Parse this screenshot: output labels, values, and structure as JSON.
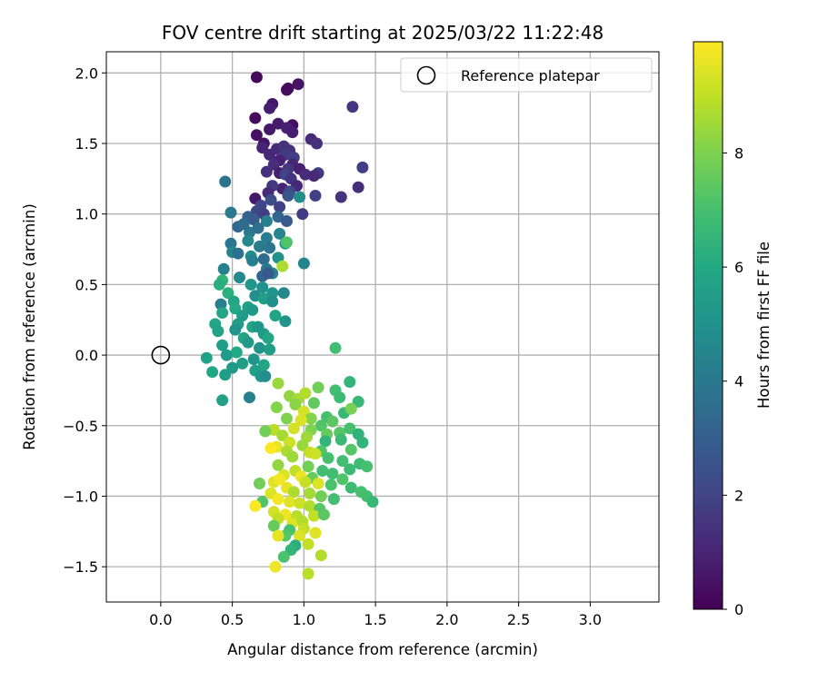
{
  "chart_data": {
    "type": "scatter",
    "title": "FOV centre drift starting at 2025/03/22 11:22:48",
    "xlabel": "Angular distance from reference (arcmin)",
    "ylabel": "Rotation from reference (arcmin)",
    "xlim": [
      -0.38,
      3.48
    ],
    "ylim": [
      -1.75,
      2.15
    ],
    "xticks": [
      "0.0",
      "0.5",
      "1.0",
      "1.5",
      "2.0",
      "2.5",
      "3.0"
    ],
    "xtick_values": [
      0,
      0.5,
      1.0,
      1.5,
      2.0,
      2.5,
      3.0
    ],
    "yticks": [
      "−1.5",
      "−1.0",
      "−0.5",
      "0.0",
      "0.5",
      "1.0",
      "1.5",
      "2.0"
    ],
    "ytick_values": [
      -1.5,
      -1.0,
      -0.5,
      0,
      0.5,
      1.0,
      1.5,
      2.0
    ],
    "grid": true,
    "legend_position": "top-right",
    "legend": [
      {
        "label": "Reference platepar",
        "marker": "open-circle"
      }
    ],
    "reference_point": {
      "x": 0.0,
      "y": 0.0
    },
    "colorbar": {
      "label": "Hours from first FF file",
      "range": [
        0,
        9.95
      ],
      "ticks": [
        "0",
        "2",
        "4",
        "6",
        "8"
      ],
      "tick_values": [
        0,
        2,
        4,
        6,
        8
      ],
      "colormap": "viridis"
    },
    "series": [
      {
        "points": [
          [
            0.67,
            1.97,
            0.2
          ],
          [
            0.96,
            1.92,
            0.5
          ],
          [
            0.88,
            1.88,
            0.4
          ],
          [
            0.89,
            1.89,
            0.3
          ],
          [
            0.78,
            1.78,
            0.6
          ],
          [
            0.76,
            1.75,
            0.8
          ],
          [
            0.66,
            1.68,
            0.3
          ],
          [
            0.82,
            1.64,
            0.7
          ],
          [
            0.92,
            1.63,
            0.4
          ],
          [
            0.88,
            1.61,
            0.9
          ],
          [
            0.76,
            1.6,
            0.6
          ],
          [
            0.92,
            1.58,
            0.8
          ],
          [
            0.67,
            1.56,
            0.4
          ],
          [
            1.34,
            1.76,
            1.6
          ],
          [
            1.05,
            1.53,
            1.2
          ],
          [
            1.09,
            1.5,
            1.4
          ],
          [
            0.72,
            1.5,
            0.5
          ],
          [
            0.71,
            1.47,
            1.0
          ],
          [
            0.81,
            1.46,
            1.2
          ],
          [
            0.86,
            1.48,
            1.5
          ],
          [
            0.9,
            1.45,
            1.4
          ],
          [
            0.87,
            1.42,
            1.7
          ],
          [
            0.93,
            1.4,
            1.8
          ],
          [
            0.76,
            1.42,
            1.1
          ],
          [
            0.83,
            1.38,
            0.9
          ],
          [
            0.79,
            1.35,
            1.3
          ],
          [
            0.92,
            1.35,
            1.0
          ],
          [
            0.74,
            1.3,
            1.4
          ],
          [
            0.83,
            1.29,
            0.8
          ],
          [
            0.89,
            1.32,
            1.6
          ],
          [
            0.97,
            1.32,
            0.9
          ],
          [
            1.01,
            1.28,
            1.3
          ],
          [
            1.1,
            1.29,
            1.7
          ],
          [
            1.41,
            1.33,
            1.8
          ],
          [
            0.87,
            1.28,
            2.0
          ],
          [
            0.91,
            1.25,
            1.5
          ],
          [
            1.07,
            1.27,
            1.2
          ],
          [
            0.95,
            1.2,
            1.1
          ],
          [
            0.85,
            1.18,
            0.9
          ],
          [
            0.78,
            1.2,
            1.7
          ],
          [
            0.9,
            1.16,
            2.2
          ],
          [
            0.75,
            1.15,
            1.2
          ],
          [
            1.38,
            1.19,
            1.3
          ],
          [
            1.08,
            1.13,
            1.9
          ],
          [
            1.26,
            1.12,
            1.5
          ],
          [
            0.66,
            1.11,
            0.6
          ],
          [
            0.89,
            1.13,
            2.6
          ],
          [
            0.97,
            1.12,
            4.8
          ],
          [
            0.77,
            1.1,
            2.4
          ],
          [
            0.7,
            1.06,
            2.0
          ],
          [
            0.83,
            1.05,
            1.9
          ],
          [
            0.45,
            1.23,
            3.8
          ],
          [
            0.67,
            1.02,
            2.2
          ],
          [
            0.72,
            1.0,
            1.8
          ],
          [
            0.61,
            0.98,
            3.1
          ],
          [
            0.65,
            0.96,
            2.9
          ],
          [
            0.82,
            0.98,
            3.3
          ],
          [
            0.74,
            0.95,
            4.3
          ],
          [
            0.88,
            0.95,
            2.8
          ],
          [
            0.99,
            1.0,
            1.7
          ],
          [
            0.49,
            1.01,
            4.0
          ],
          [
            0.54,
            0.91,
            3.3
          ],
          [
            0.62,
            0.87,
            4.0
          ],
          [
            0.58,
            0.93,
            3.5
          ],
          [
            0.68,
            0.9,
            3.6
          ],
          [
            0.83,
            0.86,
            4.5
          ],
          [
            0.74,
            0.83,
            4.2
          ],
          [
            0.61,
            0.81,
            4.6
          ],
          [
            0.49,
            0.79,
            3.9
          ],
          [
            0.87,
            0.79,
            5.4
          ],
          [
            0.69,
            0.77,
            4.1
          ],
          [
            0.76,
            0.76,
            3.9
          ],
          [
            0.88,
            0.8,
            7.2
          ],
          [
            0.5,
            0.73,
            4.5
          ],
          [
            0.54,
            0.72,
            3.7
          ],
          [
            0.63,
            0.7,
            4.8
          ],
          [
            0.72,
            0.68,
            3.5
          ],
          [
            0.64,
            0.67,
            4.3
          ],
          [
            0.82,
            0.69,
            5.0
          ],
          [
            0.85,
            0.63,
            8.7
          ],
          [
            0.74,
            0.61,
            4.0
          ],
          [
            0.44,
            0.61,
            4.3
          ],
          [
            0.78,
            0.58,
            4.4
          ],
          [
            0.55,
            0.55,
            4.7
          ],
          [
            0.71,
            0.56,
            3.2
          ],
          [
            0.75,
            0.58,
            2.8
          ],
          [
            1.0,
            0.65,
            4.5
          ],
          [
            0.43,
            0.53,
            6.5
          ],
          [
            0.41,
            0.5,
            6.2
          ],
          [
            0.63,
            0.5,
            5.2
          ],
          [
            0.71,
            0.48,
            5.0
          ],
          [
            0.78,
            0.44,
            5.1
          ],
          [
            0.86,
            0.44,
            4.6
          ],
          [
            0.47,
            0.44,
            6.3
          ],
          [
            0.66,
            0.42,
            4.9
          ],
          [
            0.72,
            0.4,
            5.5
          ],
          [
            0.51,
            0.38,
            5.8
          ],
          [
            0.42,
            0.36,
            4.2
          ],
          [
            0.78,
            0.38,
            4.9
          ],
          [
            0.61,
            0.34,
            5.6
          ],
          [
            0.52,
            0.33,
            6.0
          ],
          [
            0.64,
            0.32,
            5.3
          ],
          [
            0.43,
            0.3,
            5.8
          ],
          [
            0.57,
            0.28,
            5.4
          ],
          [
            0.8,
            0.28,
            5.8
          ],
          [
            0.87,
            0.24,
            5.1
          ],
          [
            0.54,
            0.22,
            5.5
          ],
          [
            0.38,
            0.22,
            5.9
          ],
          [
            0.64,
            0.2,
            5.9
          ],
          [
            0.68,
            0.2,
            5.2
          ],
          [
            0.52,
            0.18,
            5.1
          ],
          [
            0.4,
            0.17,
            5.7
          ],
          [
            0.58,
            0.12,
            5.8
          ],
          [
            0.72,
            0.15,
            5.4
          ],
          [
            0.75,
            0.12,
            5.9
          ],
          [
            0.61,
            0.09,
            5.3
          ],
          [
            0.43,
            0.07,
            5.6
          ],
          [
            0.69,
            0.05,
            5.0
          ],
          [
            0.53,
            0.02,
            6.0
          ],
          [
            0.76,
            0.04,
            5.5
          ],
          [
            0.46,
            0.0,
            5.4
          ],
          [
            0.32,
            -0.02,
            5.7
          ],
          [
            0.65,
            -0.03,
            5.1
          ],
          [
            0.57,
            -0.06,
            5.5
          ],
          [
            0.72,
            -0.07,
            5.8
          ],
          [
            0.5,
            -0.09,
            5.3
          ],
          [
            0.66,
            -0.11,
            5.6
          ],
          [
            0.36,
            -0.12,
            5.9
          ],
          [
            0.45,
            -0.14,
            5.5
          ],
          [
            0.7,
            -0.15,
            5.2
          ],
          [
            0.73,
            -0.15,
            4.9
          ],
          [
            0.62,
            -0.3,
            4.3
          ],
          [
            0.43,
            -0.32,
            5.6
          ],
          [
            1.22,
            0.05,
            6.9
          ],
          [
            0.82,
            -0.2,
            8.4
          ],
          [
            0.9,
            -0.29,
            8.3
          ],
          [
            0.96,
            -0.31,
            8.6
          ],
          [
            1.01,
            -0.27,
            8.8
          ],
          [
            1.1,
            -0.23,
            7.8
          ],
          [
            1.22,
            -0.25,
            6.9
          ],
          [
            1.32,
            -0.19,
            6.5
          ],
          [
            1.38,
            -0.33,
            6.6
          ],
          [
            1.25,
            -0.3,
            6.8
          ],
          [
            0.81,
            -0.37,
            8.1
          ],
          [
            0.94,
            -0.35,
            8.2
          ],
          [
            1.07,
            -0.34,
            7.5
          ],
          [
            1.16,
            -0.44,
            7.0
          ],
          [
            1.28,
            -0.41,
            6.6
          ],
          [
            1.2,
            -0.47,
            7.4
          ],
          [
            1.33,
            -0.38,
            7.9
          ],
          [
            1.0,
            -0.4,
            9.3
          ],
          [
            1.05,
            -0.45,
            8.1
          ],
          [
            1.12,
            -0.5,
            7.2
          ],
          [
            0.88,
            -0.45,
            8.0
          ],
          [
            0.98,
            -0.46,
            9.4
          ],
          [
            0.93,
            -0.52,
            9.3
          ],
          [
            1.05,
            -0.53,
            8.0
          ],
          [
            0.79,
            -0.53,
            8.9
          ],
          [
            0.73,
            -0.54,
            7.8
          ],
          [
            0.85,
            -0.57,
            8.6
          ],
          [
            1.16,
            -0.56,
            7.6
          ],
          [
            1.25,
            -0.55,
            7.3
          ],
          [
            1.32,
            -0.52,
            7.0
          ],
          [
            1.38,
            -0.56,
            6.4
          ],
          [
            1.02,
            -0.58,
            8.5
          ],
          [
            1.15,
            -0.61,
            6.5
          ],
          [
            1.26,
            -0.6,
            6.7
          ],
          [
            1.41,
            -0.62,
            6.5
          ],
          [
            0.9,
            -0.62,
            9.2
          ],
          [
            0.99,
            -0.64,
            8.4
          ],
          [
            0.81,
            -0.65,
            9.6
          ],
          [
            0.77,
            -0.66,
            9.9
          ],
          [
            0.88,
            -0.68,
            8.7
          ],
          [
            1.04,
            -0.69,
            9.1
          ],
          [
            1.12,
            -0.68,
            7.2
          ],
          [
            1.33,
            -0.67,
            7.3
          ],
          [
            0.92,
            -0.72,
            8.5
          ],
          [
            1.08,
            -0.7,
            9.2
          ],
          [
            1.17,
            -0.73,
            7.0
          ],
          [
            1.27,
            -0.75,
            6.9
          ],
          [
            1.39,
            -0.77,
            6.8
          ],
          [
            0.82,
            -0.78,
            8.3
          ],
          [
            1.03,
            -0.79,
            7.8
          ],
          [
            1.13,
            -0.82,
            6.9
          ],
          [
            1.32,
            -0.81,
            6.7
          ],
          [
            1.44,
            -0.79,
            7.0
          ],
          [
            0.94,
            -0.82,
            9.0
          ],
          [
            0.86,
            -0.85,
            9.4
          ],
          [
            0.98,
            -0.86,
            9.7
          ],
          [
            1.06,
            -0.87,
            7.6
          ],
          [
            1.2,
            -0.84,
            6.9
          ],
          [
            1.27,
            -0.88,
            7.2
          ],
          [
            0.79,
            -0.9,
            9.5
          ],
          [
            0.83,
            -0.88,
            9.8
          ],
          [
            1.01,
            -0.9,
            9.1
          ],
          [
            1.1,
            -0.91,
            9.4
          ],
          [
            1.19,
            -0.92,
            7.1
          ],
          [
            0.69,
            -0.91,
            7.8
          ],
          [
            0.88,
            -0.94,
            9.6
          ],
          [
            0.93,
            -0.97,
            8.7
          ],
          [
            1.33,
            -0.94,
            6.8
          ],
          [
            1.4,
            -0.97,
            7.0
          ],
          [
            1.44,
            -1.0,
            6.9
          ],
          [
            1.48,
            -1.04,
            6.6
          ],
          [
            0.77,
            -0.98,
            9.4
          ],
          [
            1.04,
            -0.98,
            8.6
          ],
          [
            1.12,
            -1.0,
            7.8
          ],
          [
            1.21,
            -1.02,
            6.9
          ],
          [
            0.82,
            -1.02,
            9.8
          ],
          [
            0.9,
            -1.04,
            9.5
          ],
          [
            0.71,
            -1.04,
            7.2
          ],
          [
            0.66,
            -1.07,
            9.9
          ],
          [
            0.97,
            -1.05,
            9.2
          ],
          [
            1.04,
            -1.07,
            8.8
          ],
          [
            1.11,
            -1.09,
            7.3
          ],
          [
            0.79,
            -1.11,
            9.3
          ],
          [
            0.87,
            -1.13,
            9.7
          ],
          [
            0.95,
            -1.14,
            8.9
          ],
          [
            1.07,
            -1.14,
            9.0
          ],
          [
            1.14,
            -1.13,
            7.4
          ],
          [
            0.82,
            -1.16,
            9.0
          ],
          [
            0.92,
            -1.19,
            9.4
          ],
          [
            0.99,
            -1.18,
            8.8
          ],
          [
            0.79,
            -1.21,
            7.6
          ],
          [
            0.9,
            -1.24,
            7.0
          ],
          [
            1.0,
            -1.23,
            9.1
          ],
          [
            0.87,
            -1.28,
            7.3
          ],
          [
            0.82,
            -1.28,
            9.6
          ],
          [
            0.97,
            -1.28,
            9.4
          ],
          [
            1.08,
            -1.26,
            9.5
          ],
          [
            0.94,
            -1.35,
            6.2
          ],
          [
            1.03,
            -1.34,
            9.0
          ],
          [
            0.91,
            -1.38,
            6.5
          ],
          [
            0.86,
            -1.43,
            7.1
          ],
          [
            1.12,
            -1.42,
            8.8
          ],
          [
            0.8,
            -1.5,
            9.7
          ],
          [
            1.03,
            -1.55,
            8.9
          ]
        ]
      }
    ]
  }
}
